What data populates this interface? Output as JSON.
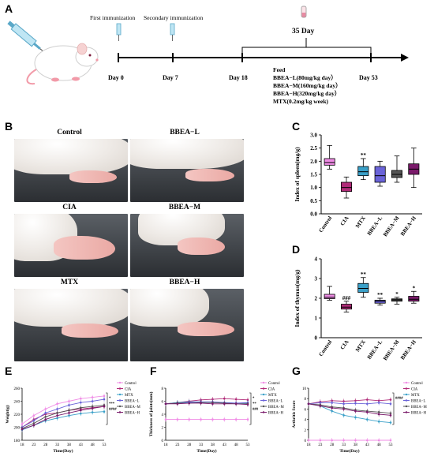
{
  "panels": {
    "A": "A",
    "B": "B",
    "C": "C",
    "D": "D",
    "E": "E",
    "F": "F",
    "G": "G"
  },
  "timeline": {
    "first_immunization": "First immunization",
    "secondary_immunization": "Secondary  immunization",
    "duration": "35 Day",
    "days": [
      "Day 0",
      "Day 7",
      "Day 18",
      "Day 53"
    ],
    "feed_lines": [
      "Feed",
      "BBEA−L(80mg/kg day）",
      "BBEA−M(160mg/kg day）",
      "BBEA−H(320mg/kg day）",
      "MTX(0.2mg/kg week)"
    ]
  },
  "photos": {
    "labels": [
      "Control",
      "BBEA−L",
      "CIA",
      "BBEA−M",
      "MTX",
      "BBEA−H"
    ]
  },
  "colors": {
    "Control": "#f08ce6",
    "CIA": "#b02a78",
    "MTX": "#3aa0c8",
    "BBEA-L": "#6a63d8",
    "BBEA-M": "#555555",
    "BBEA-H": "#7a1a6a"
  },
  "chart_data": [
    {
      "id": "C",
      "type": "box",
      "ylabel": "Index of spleen(mg/g)",
      "categories": [
        "Control",
        "CIA",
        "MTX",
        "BBEA−L",
        "BBEA−M",
        "BBEA−H"
      ],
      "ylim": [
        0,
        3
      ],
      "yticks": [
        "0.0",
        "0.5",
        "1.0",
        "1.5",
        "2.0",
        "2.5",
        "3.0"
      ],
      "boxes": [
        {
          "min": 1.7,
          "q1": 1.85,
          "median": 1.95,
          "q3": 2.1,
          "max": 2.6
        },
        {
          "min": 0.6,
          "q1": 0.85,
          "median": 1.0,
          "q3": 1.2,
          "max": 1.4
        },
        {
          "min": 1.3,
          "q1": 1.45,
          "median": 1.6,
          "q3": 1.8,
          "max": 2.1
        },
        {
          "min": 1.05,
          "q1": 1.2,
          "median": 1.45,
          "q3": 1.8,
          "max": 2.0
        },
        {
          "min": 1.2,
          "q1": 1.38,
          "median": 1.5,
          "q3": 1.65,
          "max": 2.2
        },
        {
          "min": 1.0,
          "q1": 1.5,
          "median": 1.7,
          "q3": 1.9,
          "max": 2.5
        }
      ],
      "annotations": [
        "",
        "",
        "**",
        "",
        "",
        ""
      ]
    },
    {
      "id": "D",
      "type": "box",
      "ylabel": "Index of thymus(mg/g)",
      "categories": [
        "Control",
        "CIA",
        "MTX",
        "BBEA−L",
        "BBEA−M",
        "BBEA−H"
      ],
      "ylim": [
        0,
        4
      ],
      "yticks": [
        "0",
        "1",
        "2",
        "3",
        "4"
      ],
      "boxes": [
        {
          "min": 1.9,
          "q1": 1.98,
          "median": 2.05,
          "q3": 2.2,
          "max": 2.6
        },
        {
          "min": 1.3,
          "q1": 1.45,
          "median": 1.55,
          "q3": 1.7,
          "max": 1.85
        },
        {
          "min": 2.05,
          "q1": 2.3,
          "median": 2.5,
          "q3": 2.75,
          "max": 3.05
        },
        {
          "min": 1.65,
          "q1": 1.75,
          "median": 1.85,
          "q3": 1.9,
          "max": 2.0
        },
        {
          "min": 1.7,
          "q1": 1.85,
          "median": 1.92,
          "q3": 1.97,
          "max": 2.05
        },
        {
          "min": 1.75,
          "q1": 1.85,
          "median": 1.95,
          "q3": 2.1,
          "max": 2.35
        }
      ],
      "annotations": [
        "",
        "###",
        "**",
        "**",
        "*",
        "*"
      ]
    },
    {
      "id": "E",
      "type": "line",
      "xlabel": "Time(Day)",
      "ylabel": "Weight(g)",
      "x": [
        18,
        23,
        28,
        33,
        38,
        43,
        48,
        53
      ],
      "ylim": [
        180,
        260
      ],
      "yticks": [
        "180",
        "200",
        "220",
        "240",
        "260"
      ],
      "series": [
        {
          "name": "Control",
          "values": [
            205,
            218,
            228,
            236,
            240,
            244,
            246,
            248
          ]
        },
        {
          "name": "CIA",
          "values": [
            200,
            212,
            220,
            222,
            226,
            228,
            230,
            232
          ]
        },
        {
          "name": "MTX",
          "values": [
            196,
            203,
            210,
            214,
            218,
            221,
            223,
            224
          ]
        },
        {
          "name": "BBEA−L",
          "values": [
            200,
            210,
            222,
            228,
            234,
            238,
            240,
            243
          ]
        },
        {
          "name": "BBEA−M",
          "values": [
            198,
            206,
            216,
            222,
            226,
            230,
            232,
            234
          ]
        },
        {
          "name": "BBEA−H",
          "values": [
            197,
            203,
            212,
            218,
            222,
            226,
            229,
            232
          ]
        }
      ],
      "sig": [
        "*",
        "***",
        "####"
      ]
    },
    {
      "id": "F",
      "type": "line",
      "xlabel": "Time(Day)",
      "ylabel": "Thickness of joints(mm)",
      "x": [
        18,
        23,
        28,
        33,
        38,
        43,
        48,
        53
      ],
      "ylim": [
        0,
        8
      ],
      "yticks": [
        "0",
        "2",
        "4",
        "6",
        "8"
      ],
      "series": [
        {
          "name": "Control",
          "values": [
            3.2,
            3.2,
            3.2,
            3.2,
            3.2,
            3.2,
            3.2,
            3.2
          ]
        },
        {
          "name": "CIA",
          "values": [
            5.6,
            5.8,
            6.0,
            6.2,
            6.3,
            6.4,
            6.3,
            6.2
          ]
        },
        {
          "name": "MTX",
          "values": [
            5.6,
            5.8,
            5.9,
            5.9,
            5.8,
            5.8,
            5.7,
            5.7
          ]
        },
        {
          "name": "BBEA−L",
          "values": [
            5.6,
            5.7,
            5.8,
            5.9,
            5.9,
            5.8,
            5.7,
            5.8
          ]
        },
        {
          "name": "BBEA−M",
          "values": [
            5.6,
            5.7,
            5.7,
            5.8,
            5.8,
            5.7,
            5.6,
            5.6
          ]
        },
        {
          "name": "BBEA−H",
          "values": [
            5.6,
            5.6,
            5.7,
            5.7,
            5.6,
            5.6,
            5.6,
            5.5
          ]
        }
      ],
      "sig": [
        "*",
        "**",
        "###"
      ]
    },
    {
      "id": "G",
      "type": "line",
      "xlabel": "Time(Day)",
      "ylabel": "Arthritis Score",
      "x": [
        18,
        23,
        28,
        33,
        38,
        43,
        48,
        53
      ],
      "ylim": [
        0,
        10
      ],
      "yticks": [
        "0",
        "2",
        "4",
        "6",
        "8",
        "10"
      ],
      "series": [
        {
          "name": "Control",
          "values": [
            0,
            0,
            0,
            0,
            0,
            0,
            0,
            0
          ]
        },
        {
          "name": "CIA",
          "values": [
            7.0,
            7.4,
            7.6,
            7.5,
            7.6,
            7.8,
            7.6,
            7.8
          ]
        },
        {
          "name": "MTX",
          "values": [
            7.0,
            6.6,
            5.6,
            4.8,
            4.4,
            4.0,
            3.6,
            3.4
          ]
        },
        {
          "name": "BBEA−L",
          "values": [
            7.0,
            7.2,
            7.2,
            7.0,
            7.1,
            7.0,
            7.2,
            7.0
          ]
        },
        {
          "name": "BBEA−M",
          "values": [
            7.0,
            6.8,
            6.4,
            6.2,
            5.8,
            5.6,
            5.4,
            5.2
          ]
        },
        {
          "name": "BBEA−H",
          "values": [
            7.0,
            6.6,
            6.2,
            6.0,
            5.6,
            5.4,
            5.0,
            4.8
          ]
        }
      ],
      "sig": [
        "####"
      ]
    }
  ]
}
